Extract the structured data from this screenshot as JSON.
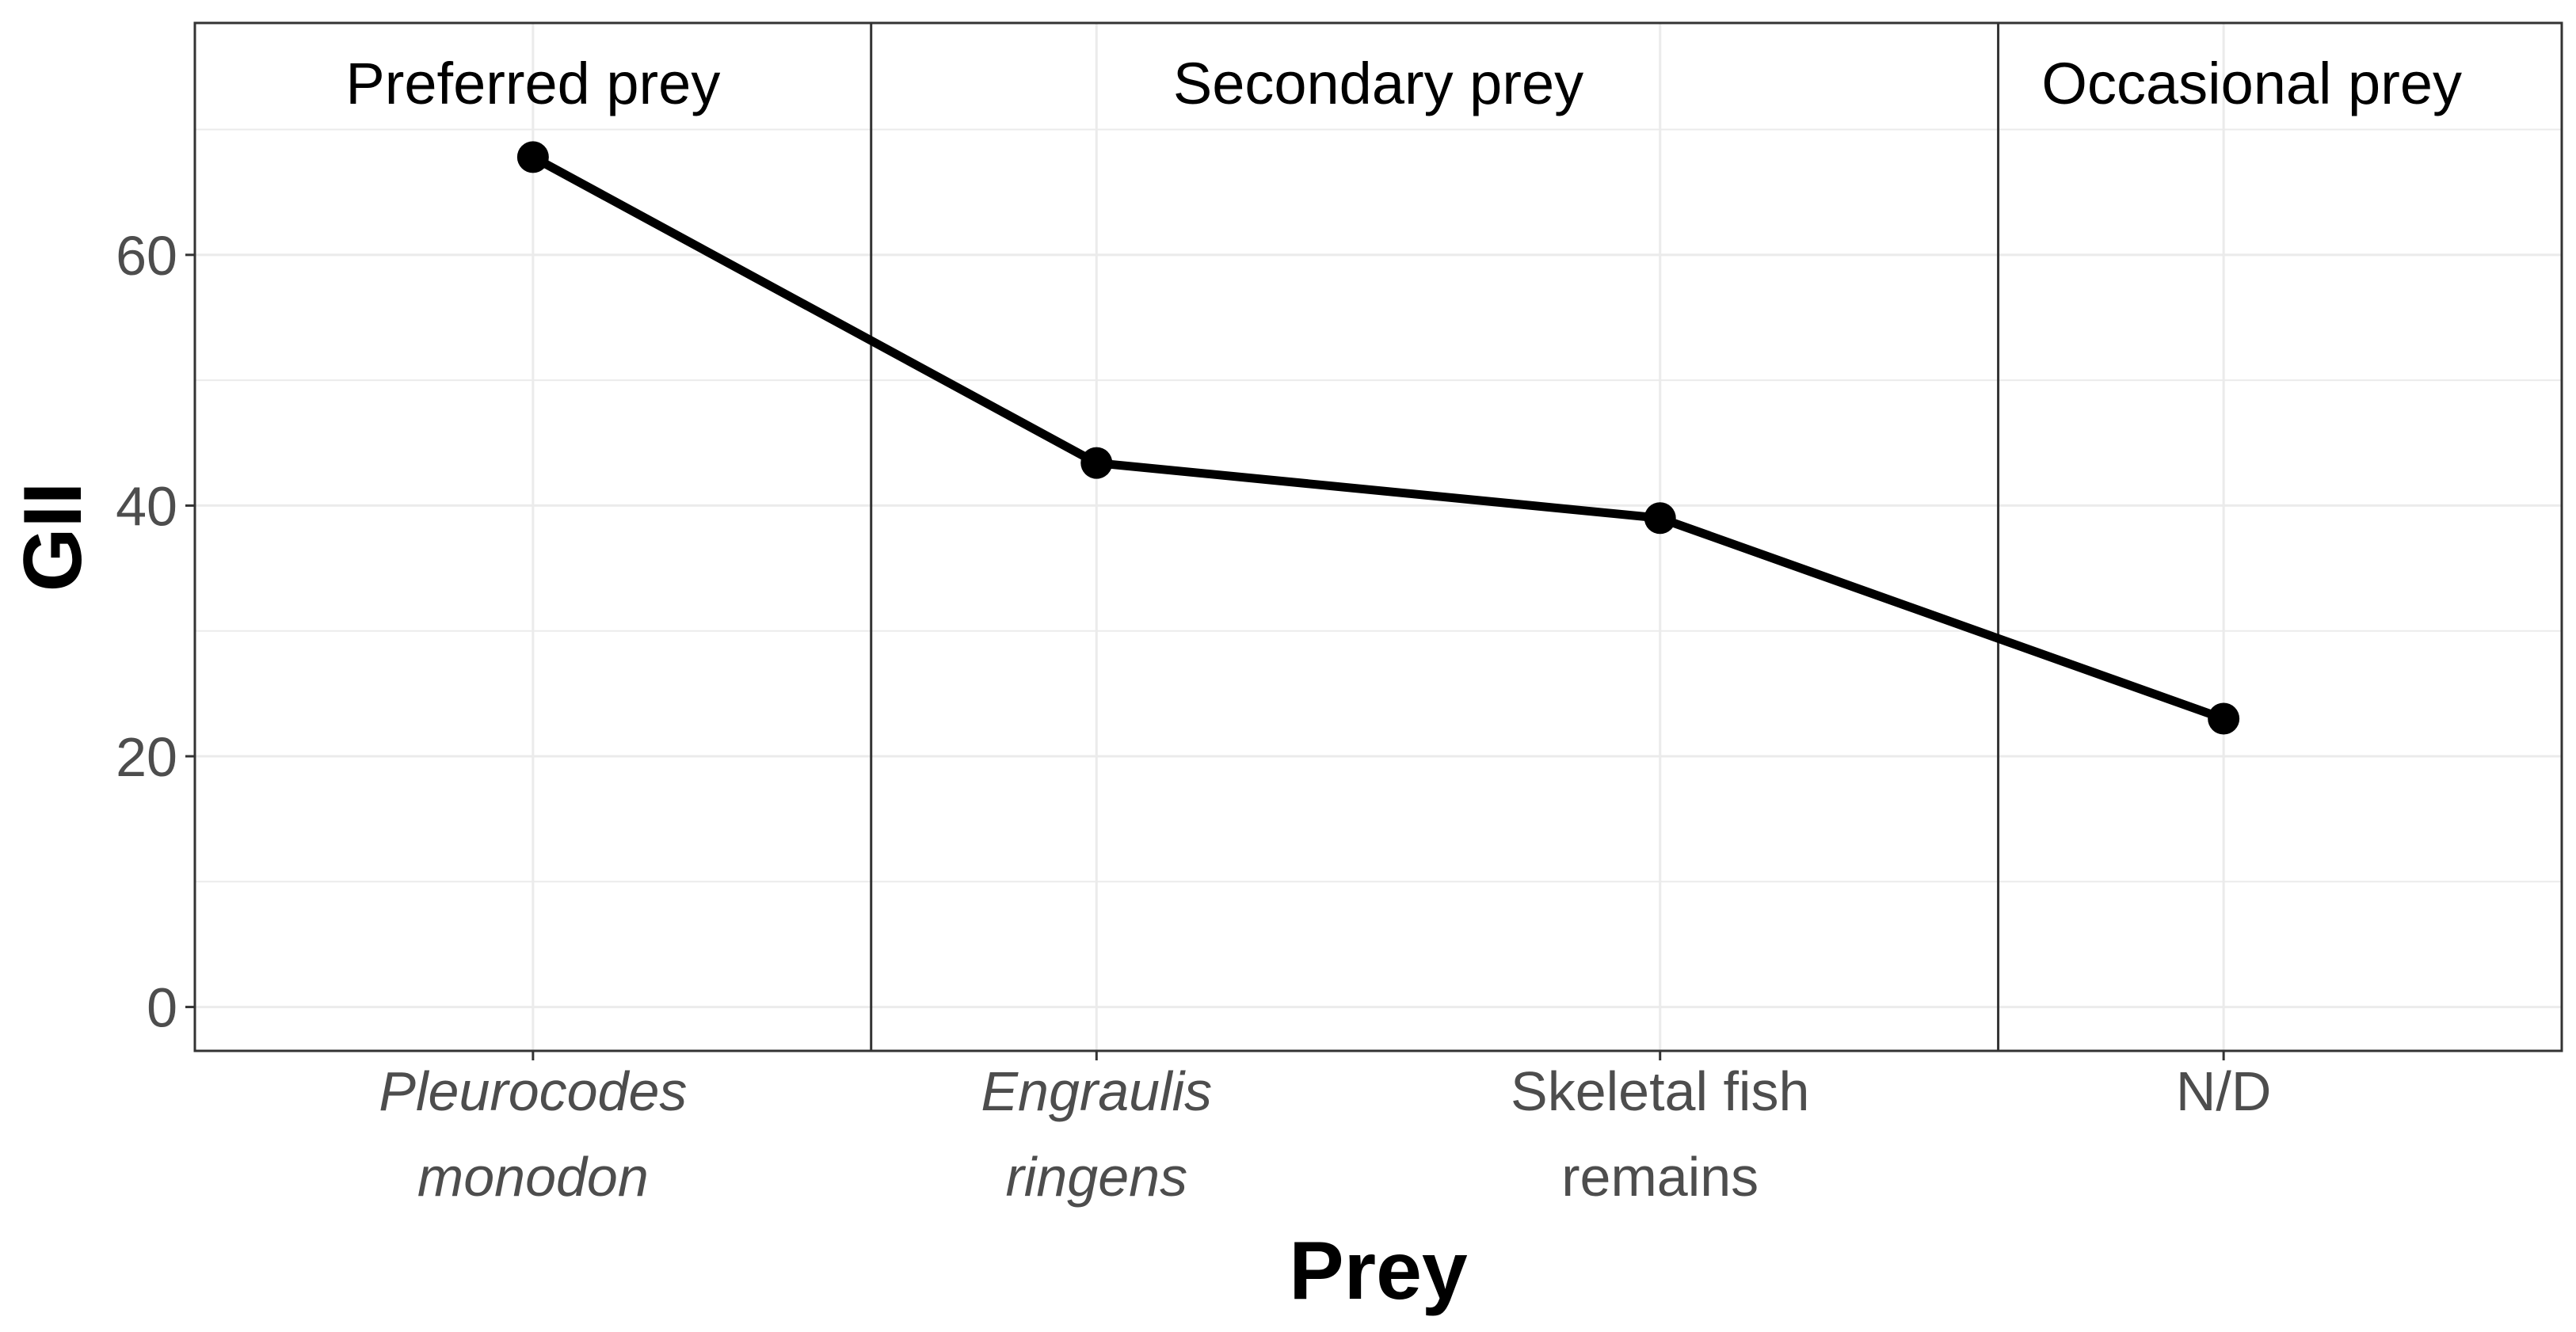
{
  "chart_data": {
    "type": "line",
    "title": "",
    "xlabel": "Prey",
    "ylabel": "GII",
    "categories": [
      {
        "lines": [
          "Pleurocodes",
          "monodon"
        ],
        "italic": true
      },
      {
        "lines": [
          "Engraulis",
          "ringens"
        ],
        "italic": true
      },
      {
        "lines": [
          "Skeletal fish",
          "remains"
        ],
        "italic": false
      },
      {
        "lines": [
          "N/D"
        ],
        "italic": false
      }
    ],
    "values": [
      67.8,
      43.4,
      39.0,
      23.0
    ],
    "ylim": [
      -3.5,
      78.5
    ],
    "yticks": [
      0,
      20,
      40,
      60
    ],
    "grid": true,
    "groups": [
      {
        "label": "Preferred prey",
        "from": 0.5,
        "to": 1.5
      },
      {
        "label": "Secondary prey",
        "from": 1.5,
        "to": 3.5
      },
      {
        "label": "Occasional prey",
        "from": 3.5,
        "to": 4.6
      }
    ],
    "dividers": [
      1.6,
      3.6
    ],
    "colors": {
      "line": "#000000",
      "grid": "#ebebeb",
      "border": "#333333",
      "tick_text": "#4d4d4d"
    }
  }
}
